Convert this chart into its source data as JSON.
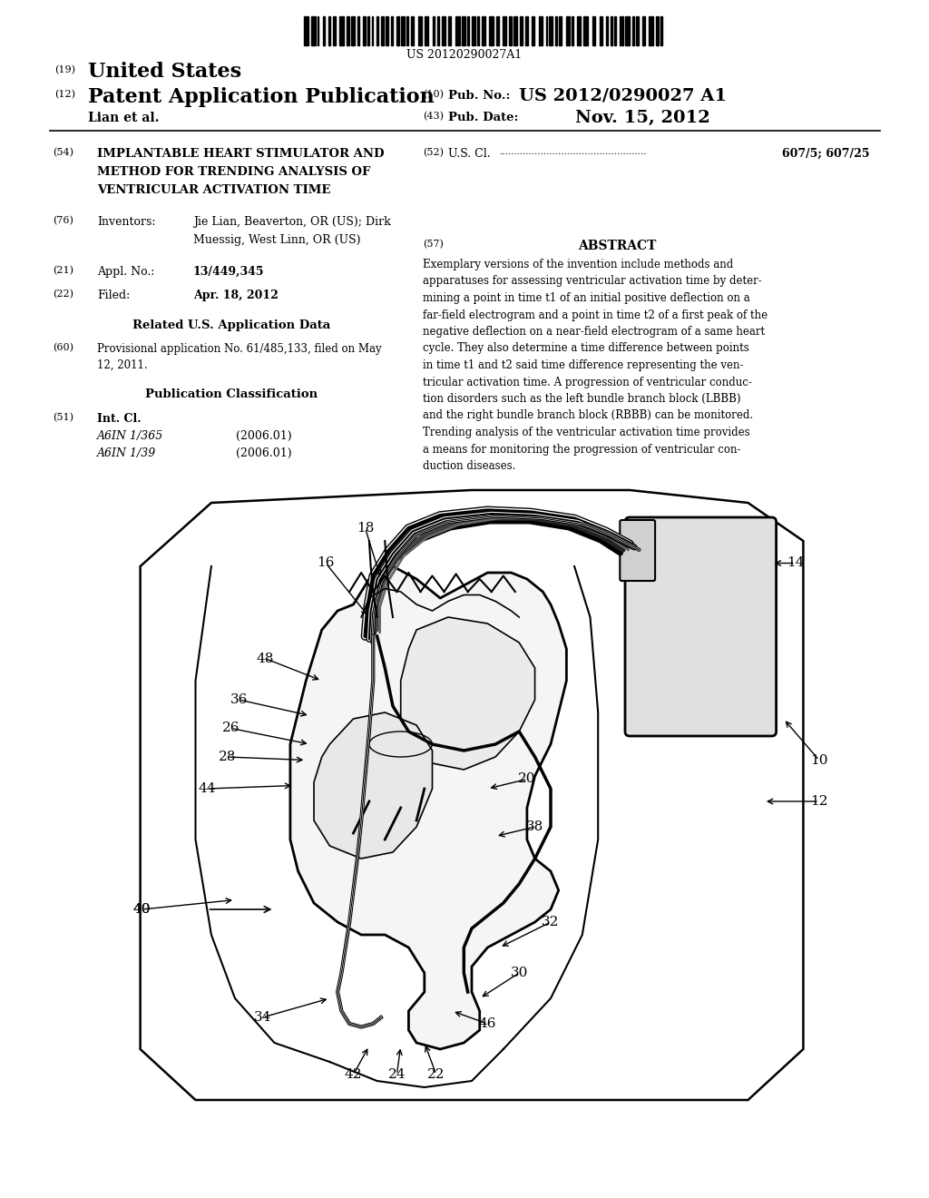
{
  "bg_color": "#ffffff",
  "barcode_text": "US 20120290027A1",
  "patent_number": "US 2012/0290027 A1",
  "pub_date": "Nov. 15, 2012",
  "country": "United States",
  "kind": "Patent Application Publication",
  "inventors_short": "Lian et al.",
  "title54_lines": [
    "IMPLANTABLE HEART STIMULATOR AND",
    "METHOD FOR TRENDING ANALYSIS OF",
    "VENTRICULAR ACTIVATION TIME"
  ],
  "us_cl": "607/5; 607/25",
  "inventors76_line1": "Jie Lian, Beaverton, OR (US); Dirk",
  "inventors76_line2": "Muessig, West Linn, OR (US)",
  "appl_no": "13/449,345",
  "filed": "Apr. 18, 2012",
  "related_data_title": "Related U.S. Application Data",
  "provisional_line1": "Provisional application No. 61/485,133, filed on May",
  "provisional_line2": "12, 2011.",
  "pub_class_title": "Publication Classification",
  "int_cl_label": "Int. Cl.",
  "int_cl1": "A6IN 1/365",
  "int_cl1_date": "(2006.01)",
  "int_cl2": "A6IN 1/39",
  "int_cl2_date": "(2006.01)",
  "abstract_title": "ABSTRACT",
  "abstract_lines": [
    "Exemplary versions of the invention include methods and",
    "apparatuses for assessing ventricular activation time by deter-",
    "mining a point in time t1 of an initial positive deflection on a",
    "far-field electrogram and a point in time t2 of a first peak of the",
    "negative deflection on a near-field electrogram of a same heart",
    "cycle. They also determine a time difference between points",
    "in time t1 and t2 said time difference representing the ven-",
    "tricular activation time. A progression of ventricular conduc-",
    "tion disorders such as the left bundle branch block (LBBB)",
    "and the right bundle branch block (RBBB) can be monitored.",
    "Trending analysis of the ventricular activation time provides",
    "a means for monitoring the progression of ventricular con-",
    "duction diseases."
  ]
}
